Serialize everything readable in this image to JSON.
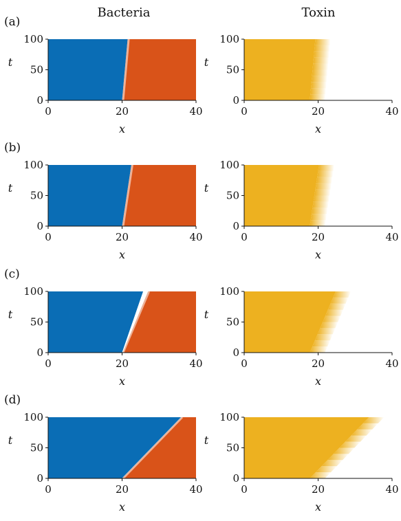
{
  "column_titles": {
    "bacteria": "Bacteria",
    "toxin": "Toxin"
  },
  "colors": {
    "bacteria_left": "#0a6db5",
    "bacteria_right": "#d95319",
    "toxin": "#edb120",
    "background": "#ffffff"
  },
  "chart_data": [
    {
      "type": "heatmap",
      "panel": "(a)",
      "species": "Bacteria",
      "xlabel": "x",
      "ylabel": "t",
      "xlim": [
        0,
        40
      ],
      "ylim": [
        0,
        100
      ],
      "xticks": [
        0,
        20,
        40
      ],
      "yticks": [
        0,
        50,
        100
      ],
      "front_x_at_t0": 20,
      "front_x_at_t100": 21.5,
      "left_species": "blue",
      "right_species": "orange",
      "gap": "none"
    },
    {
      "type": "heatmap",
      "panel": "(a)",
      "species": "Toxin",
      "xlabel": "x",
      "ylabel": "t",
      "xlim": [
        0,
        40
      ],
      "ylim": [
        0,
        100
      ],
      "xticks": [
        0,
        20,
        40
      ],
      "yticks": [
        0,
        50,
        100
      ],
      "front_x_at_t0": 20,
      "front_x_at_t100": 21.5
    },
    {
      "type": "heatmap",
      "panel": "(b)",
      "species": "Bacteria",
      "xlabel": "x",
      "ylabel": "t",
      "xlim": [
        0,
        40
      ],
      "ylim": [
        0,
        100
      ],
      "xticks": [
        0,
        20,
        40
      ],
      "yticks": [
        0,
        50,
        100
      ],
      "front_x_at_t0": 20,
      "front_x_at_t100": 22.5,
      "left_species": "blue",
      "right_species": "orange",
      "gap": "none"
    },
    {
      "type": "heatmap",
      "panel": "(b)",
      "species": "Toxin",
      "xlabel": "x",
      "ylabel": "t",
      "xlim": [
        0,
        40
      ],
      "ylim": [
        0,
        100
      ],
      "xticks": [
        0,
        20,
        40
      ],
      "yticks": [
        0,
        50,
        100
      ],
      "front_x_at_t0": 20,
      "front_x_at_t100": 22.5
    },
    {
      "type": "heatmap",
      "panel": "(c)",
      "species": "Bacteria",
      "xlabel": "x",
      "ylabel": "t",
      "xlim": [
        0,
        40
      ],
      "ylim": [
        0,
        100
      ],
      "xticks": [
        0,
        20,
        40
      ],
      "yticks": [
        0,
        50,
        100
      ],
      "front_x_at_t0": 20,
      "front_x_at_t100": 27,
      "left_species": "blue",
      "right_species": "orange",
      "gap": "white band between species"
    },
    {
      "type": "heatmap",
      "panel": "(c)",
      "species": "Toxin",
      "xlabel": "x",
      "ylabel": "t",
      "xlim": [
        0,
        40
      ],
      "ylim": [
        0,
        100
      ],
      "xticks": [
        0,
        20,
        40
      ],
      "yticks": [
        0,
        50,
        100
      ],
      "front_x_at_t0": 20,
      "front_x_at_t100": 27
    },
    {
      "type": "heatmap",
      "panel": "(d)",
      "species": "Bacteria",
      "xlabel": "x",
      "ylabel": "t",
      "xlim": [
        0,
        40
      ],
      "ylim": [
        0,
        100
      ],
      "xticks": [
        0,
        20,
        40
      ],
      "yticks": [
        0,
        50,
        100
      ],
      "front_x_at_t0": 20,
      "front_x_at_t100": 36,
      "left_species": "blue",
      "right_species": "orange",
      "gap": "none"
    },
    {
      "type": "heatmap",
      "panel": "(d)",
      "species": "Toxin",
      "xlabel": "x",
      "ylabel": "t",
      "xlim": [
        0,
        40
      ],
      "ylim": [
        0,
        100
      ],
      "xticks": [
        0,
        20,
        40
      ],
      "yticks": [
        0,
        50,
        100
      ],
      "front_x_at_t0": 20,
      "front_x_at_t100": 36
    }
  ]
}
